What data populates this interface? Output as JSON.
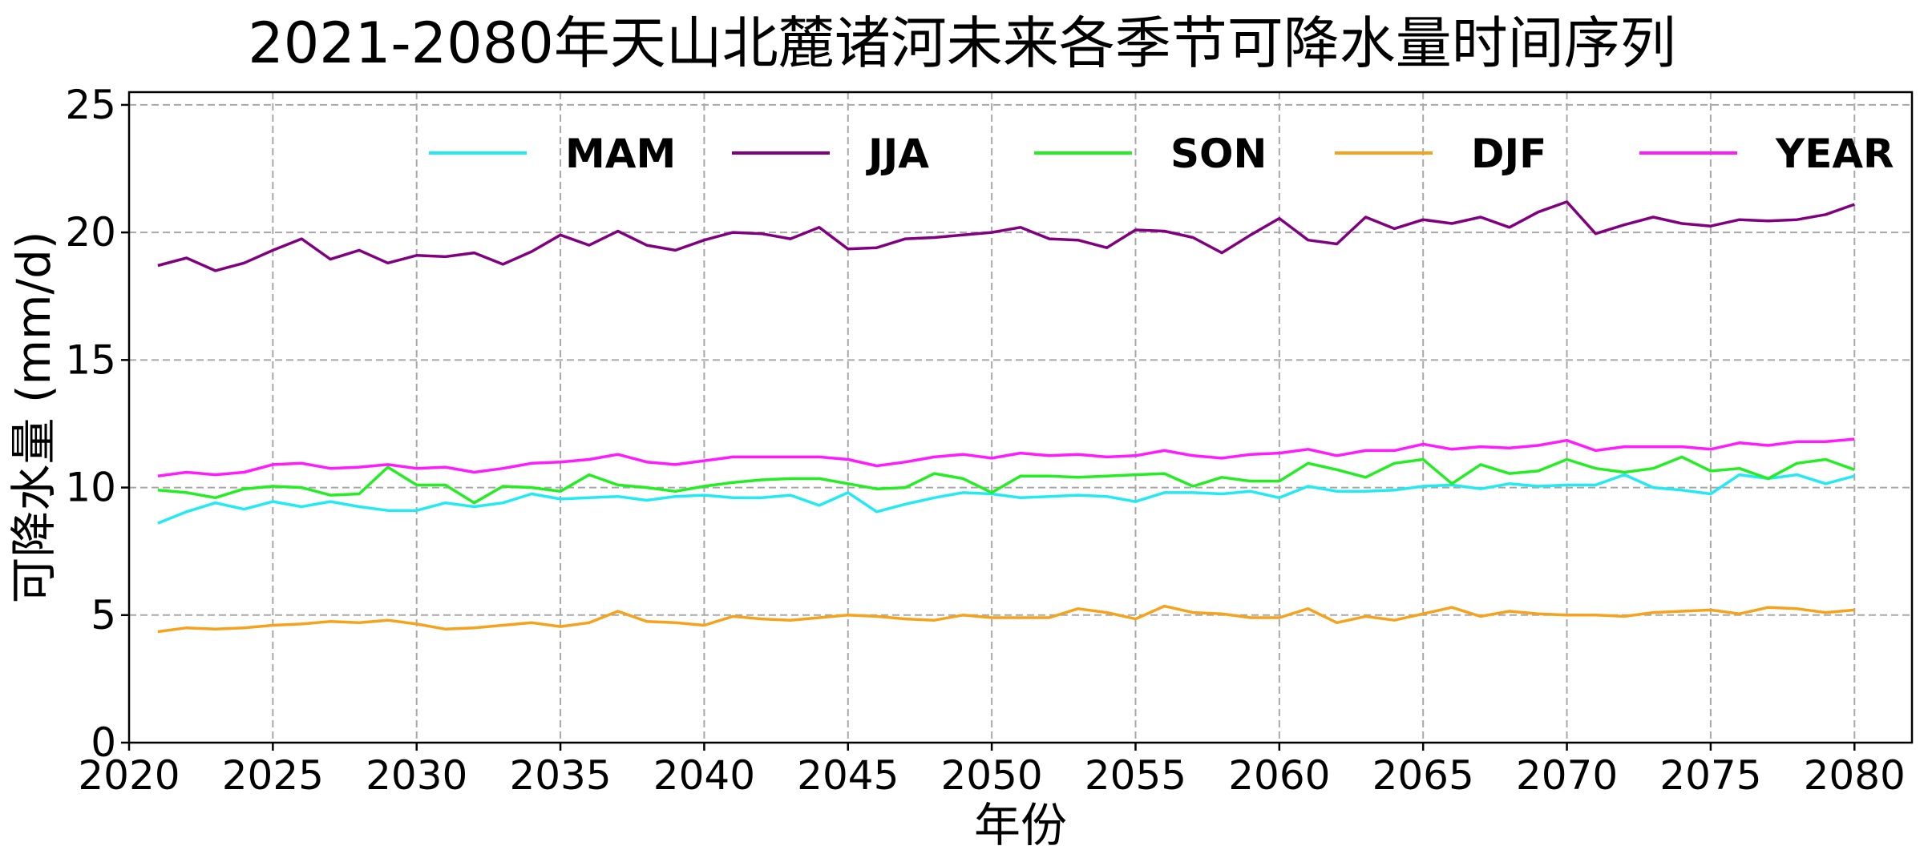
{
  "chart_data": {
    "type": "line",
    "title": "2021-2080年天山北麓诸河未来各季节可降水量时间序列",
    "xlabel": "年份",
    "ylabel": "可降水量 (mm/d)",
    "xlim": [
      2020,
      2082
    ],
    "ylim": [
      0,
      25.5
    ],
    "xticks": [
      2020,
      2025,
      2030,
      2035,
      2040,
      2045,
      2050,
      2055,
      2060,
      2065,
      2070,
      2075,
      2080
    ],
    "yticks": [
      0,
      5,
      10,
      15,
      20,
      25
    ],
    "grid": true,
    "legend_position": "top (inside, single row)",
    "x_start": 2021,
    "series": [
      {
        "name": "MAM",
        "color": "#22eaf2",
        "values": [
          8.6,
          9.05,
          9.4,
          9.15,
          9.45,
          9.25,
          9.45,
          9.25,
          9.1,
          9.1,
          9.4,
          9.25,
          9.4,
          9.75,
          9.55,
          9.6,
          9.65,
          9.5,
          9.65,
          9.7,
          9.6,
          9.6,
          9.7,
          9.3,
          9.8,
          9.05,
          9.35,
          9.6,
          9.8,
          9.75,
          9.6,
          9.65,
          9.7,
          9.65,
          9.45,
          9.8,
          9.8,
          9.75,
          9.85,
          9.6,
          10.05,
          9.85,
          9.85,
          9.9,
          10.05,
          10.1,
          9.95,
          10.15,
          10.05,
          10.1,
          10.1,
          10.5,
          10.0,
          9.9,
          9.75,
          10.5,
          10.35,
          10.5,
          10.15,
          10.45
        ]
      },
      {
        "name": "JJA",
        "color": "#800080",
        "values": [
          18.7,
          19.0,
          18.5,
          18.8,
          19.3,
          19.75,
          18.95,
          19.3,
          18.8,
          19.1,
          19.05,
          19.2,
          18.75,
          19.25,
          19.9,
          19.5,
          20.05,
          19.5,
          19.3,
          19.7,
          20.0,
          19.95,
          19.75,
          20.2,
          19.35,
          19.4,
          19.75,
          19.8,
          19.9,
          20.0,
          20.2,
          19.75,
          19.7,
          19.4,
          20.1,
          20.05,
          19.8,
          19.2,
          19.9,
          20.55,
          19.7,
          19.55,
          20.6,
          20.15,
          20.5,
          20.35,
          20.6,
          20.2,
          20.8,
          21.2,
          19.95,
          20.3,
          20.6,
          20.35,
          20.25,
          20.5,
          20.45,
          20.5,
          20.7,
          21.1
        ]
      },
      {
        "name": "SON",
        "color": "#22ee22",
        "values": [
          9.9,
          9.8,
          9.6,
          9.95,
          10.05,
          10.0,
          9.7,
          9.75,
          10.8,
          10.1,
          10.1,
          9.4,
          10.05,
          10.0,
          9.85,
          10.5,
          10.1,
          10.0,
          9.85,
          10.05,
          10.2,
          10.3,
          10.35,
          10.35,
          10.15,
          9.95,
          10.0,
          10.55,
          10.35,
          9.8,
          10.45,
          10.45,
          10.4,
          10.45,
          10.5,
          10.55,
          10.05,
          10.4,
          10.25,
          10.25,
          10.95,
          10.7,
          10.4,
          10.95,
          11.1,
          10.15,
          10.9,
          10.55,
          10.65,
          11.1,
          10.75,
          10.6,
          10.75,
          11.2,
          10.65,
          10.75,
          10.35,
          10.95,
          11.1,
          10.7
        ]
      },
      {
        "name": "DJF",
        "color": "#f5a21c",
        "values": [
          4.35,
          4.5,
          4.45,
          4.5,
          4.6,
          4.65,
          4.75,
          4.7,
          4.8,
          4.65,
          4.45,
          4.5,
          4.6,
          4.7,
          4.55,
          4.7,
          5.15,
          4.75,
          4.7,
          4.6,
          4.95,
          4.85,
          4.8,
          4.9,
          5.0,
          4.95,
          4.85,
          4.8,
          5.0,
          4.9,
          4.9,
          4.9,
          5.25,
          5.1,
          4.85,
          5.35,
          5.1,
          5.05,
          4.9,
          4.9,
          5.25,
          4.7,
          4.95,
          4.8,
          5.05,
          5.3,
          4.95,
          5.15,
          5.05,
          5.0,
          5.0,
          4.95,
          5.1,
          5.15,
          5.2,
          5.05,
          5.3,
          5.25,
          5.1,
          5.2
        ]
      },
      {
        "name": "YEAR",
        "color": "#ff1aff",
        "values": [
          10.45,
          10.6,
          10.5,
          10.6,
          10.9,
          10.95,
          10.75,
          10.8,
          10.9,
          10.75,
          10.8,
          10.6,
          10.75,
          10.95,
          11.0,
          11.1,
          11.3,
          11.0,
          10.9,
          11.05,
          11.2,
          11.2,
          11.2,
          11.2,
          11.1,
          10.85,
          11.0,
          11.2,
          11.3,
          11.15,
          11.35,
          11.25,
          11.3,
          11.2,
          11.25,
          11.45,
          11.25,
          11.15,
          11.3,
          11.35,
          11.5,
          11.25,
          11.45,
          11.45,
          11.7,
          11.5,
          11.6,
          11.55,
          11.65,
          11.85,
          11.45,
          11.6,
          11.6,
          11.6,
          11.5,
          11.75,
          11.65,
          11.8,
          11.8,
          11.9
        ]
      }
    ]
  }
}
